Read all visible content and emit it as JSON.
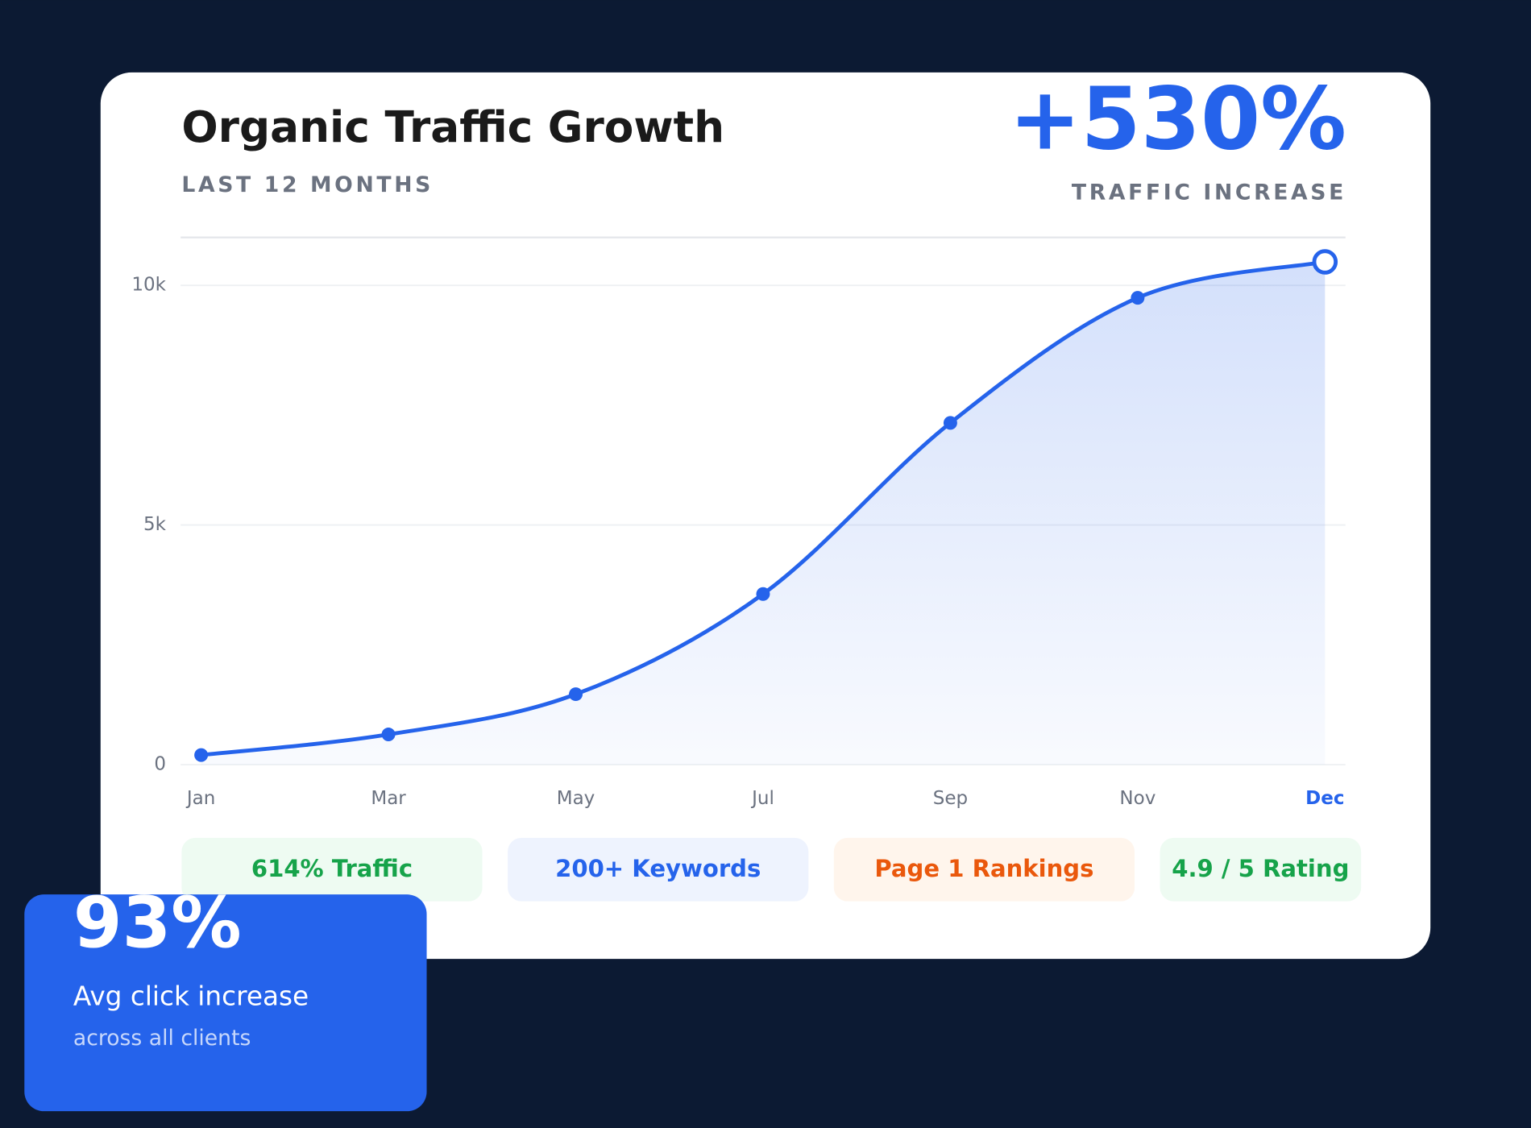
{
  "header": {
    "title": "Organic Traffic Growth",
    "subtitle": "LAST 12 MONTHS",
    "stat": "+530%",
    "stat_label": "TRAFFIC INCREASE"
  },
  "chart_data": {
    "type": "line",
    "categories": [
      "Jan",
      "Mar",
      "May",
      "Jul",
      "Sep",
      "Nov",
      "Dec"
    ],
    "series": [
      {
        "name": "Organic traffic",
        "color": "#2563eb",
        "values": [
          200,
          630,
          1470,
          3560,
          7130,
          9740,
          10490
        ]
      }
    ],
    "ylim": [
      0,
      11000
    ],
    "yticks": [
      0,
      {
        "value": 5000,
        "label": "5k"
      },
      {
        "value": 10000,
        "label": "10k"
      }
    ],
    "grid": true,
    "area": true
  },
  "badges": [
    "614% Traffic",
    "200+ Keywords",
    "Page 1 Rankings",
    "4.9 / 5 Rating"
  ],
  "card": {
    "value": "93%",
    "label": "Avg click increase",
    "note": "across all clients"
  }
}
